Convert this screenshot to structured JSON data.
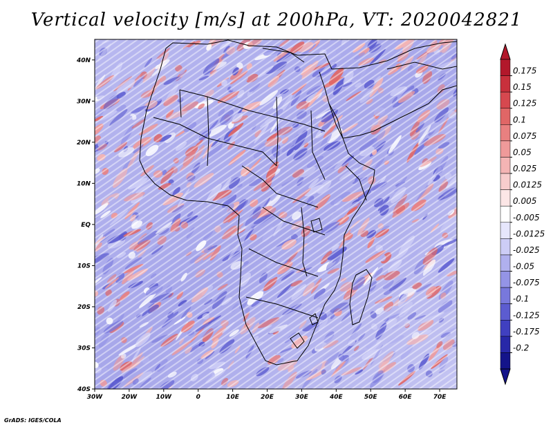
{
  "title": "Vertical velocity [m/s] at 200hPa, VT: 2020042821",
  "credit": "GrADS: IGES/COLA",
  "map": {
    "lon_range": [
      -30,
      75
    ],
    "lat_range": [
      -40,
      45
    ],
    "lon_ticks": [
      "30W",
      "20W",
      "10W",
      "0",
      "10E",
      "20E",
      "30E",
      "40E",
      "50E",
      "60E",
      "70E"
    ],
    "lon_values": [
      -30,
      -20,
      -10,
      0,
      10,
      20,
      30,
      40,
      50,
      60,
      70
    ],
    "lat_ticks": [
      "40N",
      "30N",
      "20N",
      "10N",
      "EQ",
      "10S",
      "20S",
      "30S",
      "40S"
    ],
    "lat_values": [
      40,
      30,
      20,
      10,
      0,
      -10,
      -20,
      -30,
      -40
    ]
  },
  "colorbar": {
    "levels": [
      "0.175",
      "0.15",
      "0.125",
      "0.1",
      "0.075",
      "0.05",
      "0.025",
      "0.0125",
      "0.005",
      "-0.005",
      "-0.0125",
      "-0.025",
      "-0.05",
      "-0.075",
      "-0.1",
      "-0.125",
      "-0.175",
      "-0.2"
    ],
    "colors": [
      "#b2182b",
      "#c8303c",
      "#d6484f",
      "#e06666",
      "#e98080",
      "#ef9a9a",
      "#f4b4b4",
      "#f8cdcd",
      "#fce6e6",
      "#ffffff",
      "#e6e6fc",
      "#cdcdf6",
      "#b0b0ee",
      "#9494e6",
      "#7878dc",
      "#5c5cd0",
      "#4040c0",
      "#2828a8",
      "#14148a"
    ]
  }
}
